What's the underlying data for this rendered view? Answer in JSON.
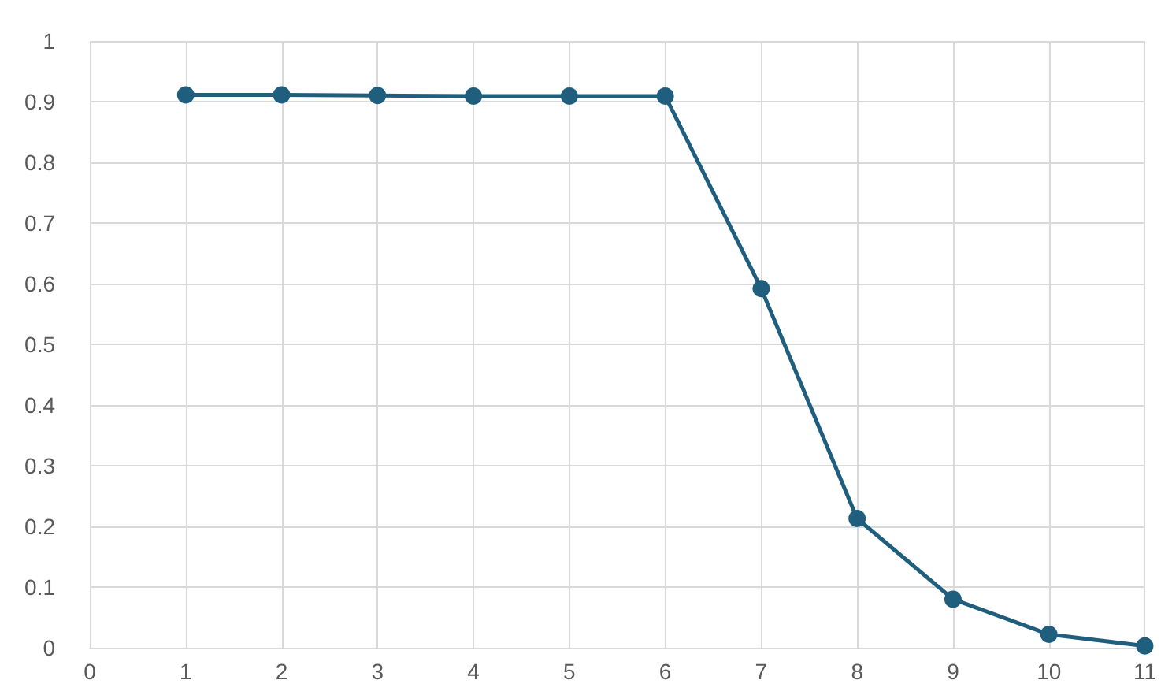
{
  "chart_data": {
    "type": "line",
    "x": [
      1,
      2,
      3,
      4,
      5,
      6,
      7,
      8,
      9,
      10,
      11
    ],
    "series": [
      {
        "color": "#1f5f7d",
        "values": [
          0.911,
          0.911,
          0.91,
          0.909,
          0.909,
          0.909,
          0.592,
          0.213,
          0.08,
          0.022,
          0.003
        ]
      }
    ],
    "xlim": [
      0,
      11
    ],
    "xticks": [
      0,
      1,
      2,
      3,
      4,
      5,
      6,
      7,
      8,
      9,
      10,
      11
    ],
    "ylim": [
      0,
      1
    ],
    "yticks": [
      0,
      0.1,
      0.2,
      0.3,
      0.4,
      0.5,
      0.6,
      0.7,
      0.8,
      0.9,
      1
    ],
    "grid": true,
    "marker": "circle",
    "line_style": "solid"
  }
}
